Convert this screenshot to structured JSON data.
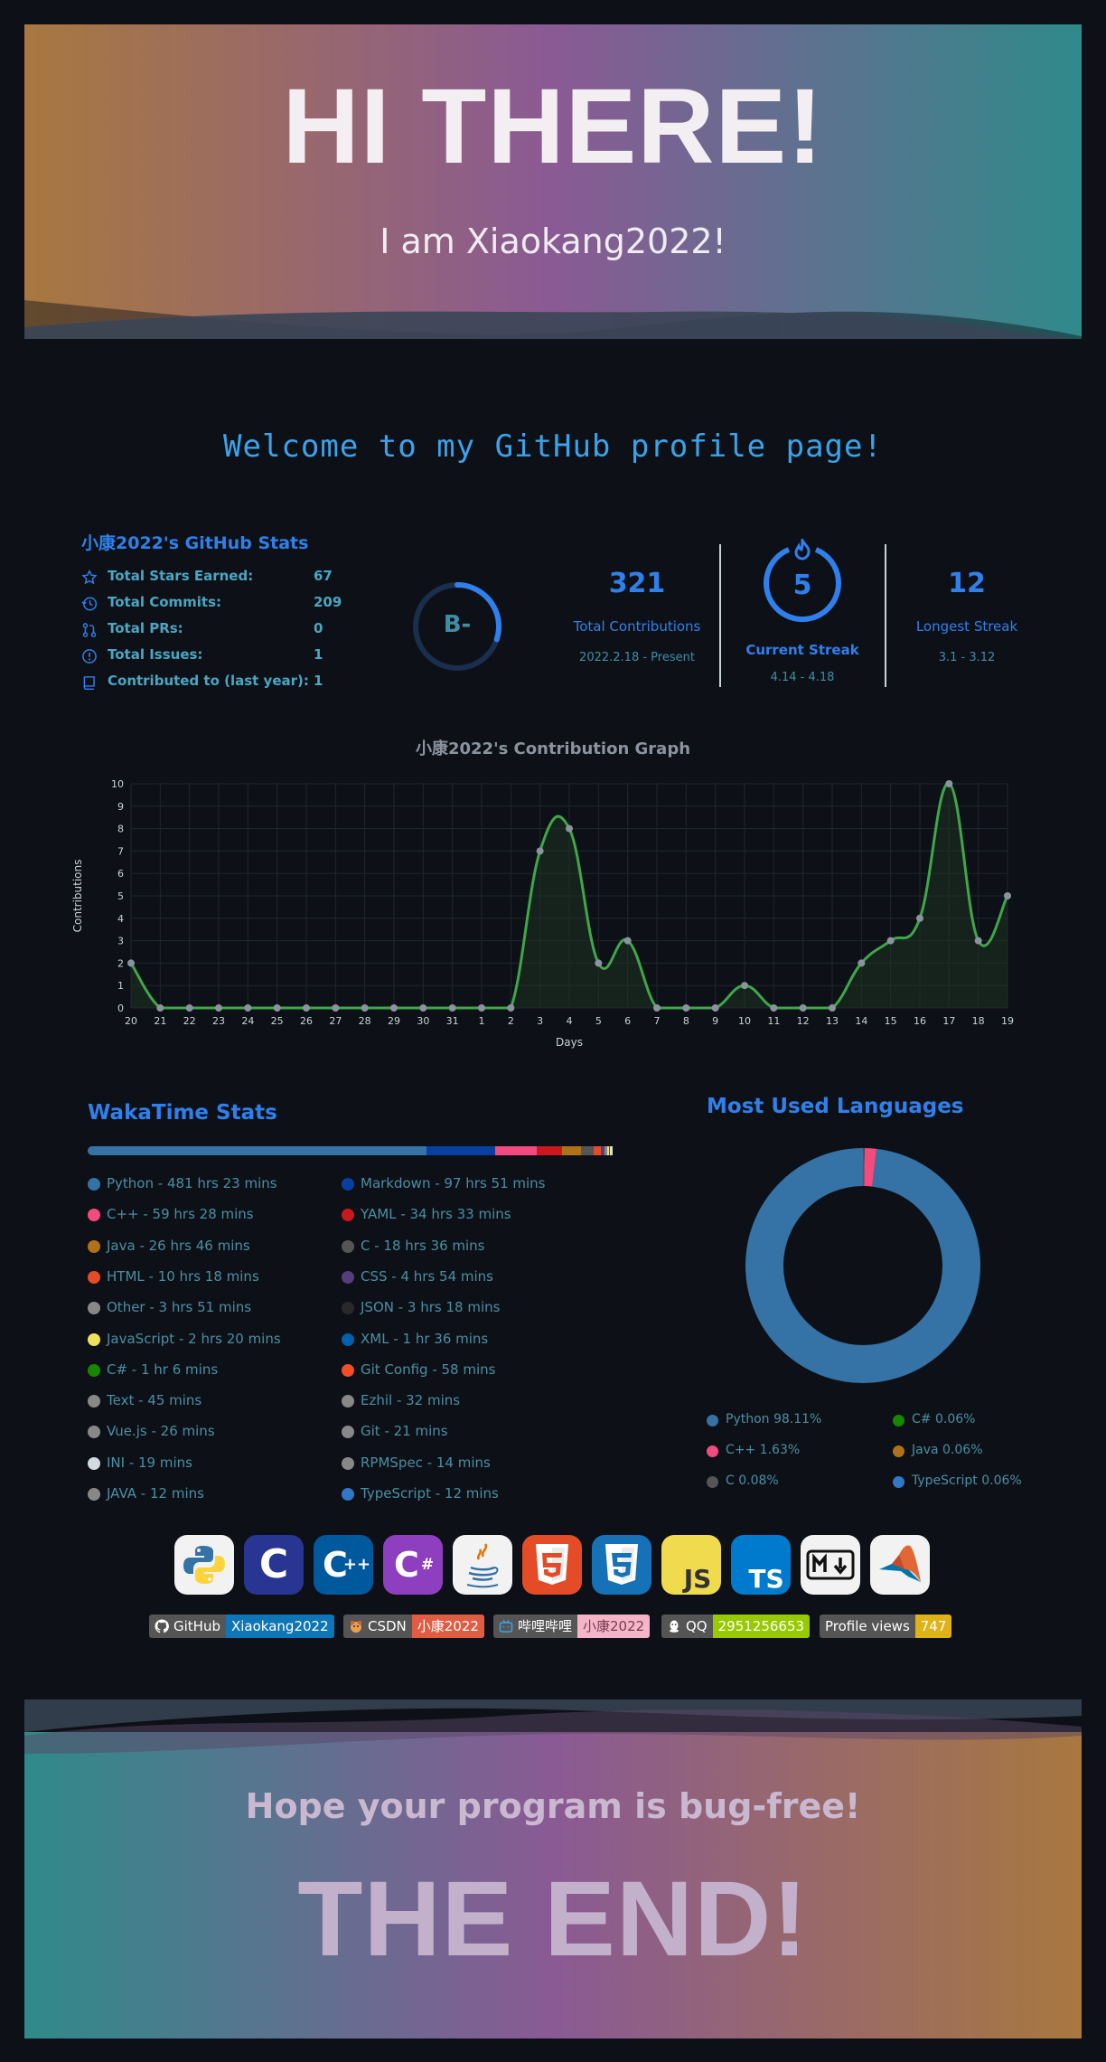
{
  "header": {
    "title": "HI THERE!",
    "subtitle": "I am Xiaokang2022!"
  },
  "welcome": "Welcome to my GitHub profile page!",
  "github_stats": {
    "title": "小康2022's GitHub Stats",
    "rows": [
      {
        "label": "Total Stars Earned:",
        "value": "67",
        "icon": "star-icon"
      },
      {
        "label": "Total Commits:",
        "value": "209",
        "icon": "history-icon"
      },
      {
        "label": "Total PRs:",
        "value": "0",
        "icon": "pull-request-icon"
      },
      {
        "label": "Total Issues:",
        "value": "1",
        "icon": "issue-icon"
      },
      {
        "label": "Contributed to (last year):",
        "value": "1",
        "icon": "repo-icon"
      }
    ],
    "rank": "B-",
    "rank_progress": 0.3
  },
  "streak": {
    "total": {
      "value": "321",
      "label": "Total Contributions",
      "range": "2022.2.18 - Present"
    },
    "current": {
      "value": "5",
      "label": "Current Streak",
      "range": "4.14 - 4.18"
    },
    "longest": {
      "value": "12",
      "label": "Longest Streak",
      "range": "3.1 - 3.12"
    }
  },
  "contribution_graph": {
    "title": "小康2022's Contribution Graph",
    "chart_data": {
      "type": "line",
      "title": "小康2022's Contribution Graph",
      "xlabel": "Days",
      "ylabel": "Contributions",
      "ylim": [
        0,
        10
      ],
      "yticks": [
        "0",
        "1",
        "2",
        "3",
        "4",
        "5",
        "6",
        "7",
        "8",
        "9",
        "10"
      ],
      "categories": [
        "20",
        "21",
        "22",
        "23",
        "24",
        "25",
        "26",
        "27",
        "28",
        "29",
        "30",
        "31",
        "1",
        "2",
        "3",
        "4",
        "5",
        "6",
        "7",
        "8",
        "9",
        "10",
        "11",
        "12",
        "13",
        "14",
        "15",
        "16",
        "17",
        "18",
        "19"
      ],
      "values": [
        2,
        0,
        0,
        0,
        0,
        0,
        0,
        0,
        0,
        0,
        0,
        0,
        0,
        0,
        7,
        8,
        2,
        3,
        0,
        0,
        0,
        1,
        0,
        0,
        0,
        2,
        3,
        4,
        10,
        3,
        5
      ],
      "grid": true,
      "colors": {
        "line": "#3fa64a",
        "point": "#8b949e",
        "grid": "#21262d"
      }
    }
  },
  "wakatime": {
    "title": "WakaTime Stats",
    "bar": [
      {
        "color": "#3572a5",
        "share": 0.622
      },
      {
        "color": "#083fa1",
        "share": 0.126
      },
      {
        "color": "#f34b7d",
        "share": 0.077
      },
      {
        "color": "#cb171e",
        "share": 0.045
      },
      {
        "color": "#b07219",
        "share": 0.035
      },
      {
        "color": "#555555",
        "share": 0.024
      },
      {
        "color": "#e34c26",
        "share": 0.013
      },
      {
        "color": "#563d7c",
        "share": 0.0065
      },
      {
        "color": "#888888",
        "share": 0.005
      },
      {
        "color": "#f1e05a",
        "share": 0.003
      },
      {
        "color": "#178600",
        "share": 0.0015
      },
      {
        "color": "#dddddd",
        "share": 0.005
      }
    ],
    "items": [
      {
        "text": "Python - 481 hrs 23 mins",
        "color": "#3572a5"
      },
      {
        "text": "Markdown - 97 hrs 51 mins",
        "color": "#083fa1"
      },
      {
        "text": "C++ - 59 hrs 28 mins",
        "color": "#f34b7d"
      },
      {
        "text": "YAML - 34 hrs 33 mins",
        "color": "#cb171e"
      },
      {
        "text": "Java - 26 hrs 46 mins",
        "color": "#b07219"
      },
      {
        "text": "C - 18 hrs 36 mins",
        "color": "#555555"
      },
      {
        "text": "HTML - 10 hrs 18 mins",
        "color": "#e34c26"
      },
      {
        "text": "CSS - 4 hrs 54 mins",
        "color": "#563d7c"
      },
      {
        "text": "Other - 3 hrs 51 mins",
        "color": "#888888"
      },
      {
        "text": "JSON - 3 hrs 18 mins",
        "color": "#292929"
      },
      {
        "text": "JavaScript - 2 hrs 20 mins",
        "color": "#f1e05a"
      },
      {
        "text": "XML - 1 hr 36 mins",
        "color": "#0060ac"
      },
      {
        "text": "C# - 1 hr 6 mins",
        "color": "#178600"
      },
      {
        "text": "Git Config - 58 mins",
        "color": "#f44d27"
      },
      {
        "text": "Text - 45 mins",
        "color": "#888888"
      },
      {
        "text": "Ezhil - 32 mins",
        "color": "#888888"
      },
      {
        "text": "Vue.js - 26 mins",
        "color": "#888888"
      },
      {
        "text": "Git - 21 mins",
        "color": "#888888"
      },
      {
        "text": "INI - 19 mins",
        "color": "#d1dbe0"
      },
      {
        "text": "RPMSpec - 14 mins",
        "color": "#888888"
      },
      {
        "text": "JAVA - 12 mins",
        "color": "#888888"
      },
      {
        "text": "TypeScript - 12 mins",
        "color": "#3178c6"
      }
    ]
  },
  "languages": {
    "title": "Most Used Languages",
    "chart_data": {
      "type": "pie",
      "donut": true,
      "slices": [
        {
          "name": "Python",
          "value": 98.11,
          "color": "#3572a5"
        },
        {
          "name": "C++",
          "value": 1.63,
          "color": "#f34b7d"
        },
        {
          "name": "C",
          "value": 0.08,
          "color": "#555555"
        },
        {
          "name": "C#",
          "value": 0.06,
          "color": "#178600"
        },
        {
          "name": "Java",
          "value": 0.06,
          "color": "#b07219"
        },
        {
          "name": "TypeScript",
          "value": 0.06,
          "color": "#3178c6"
        }
      ]
    },
    "legend": [
      {
        "text": "Python 98.11%",
        "color": "#3572a5"
      },
      {
        "text": "C# 0.06%",
        "color": "#178600"
      },
      {
        "text": "C++ 1.63%",
        "color": "#f34b7d"
      },
      {
        "text": "Java 0.06%",
        "color": "#b07219"
      },
      {
        "text": "C 0.08%",
        "color": "#555555"
      },
      {
        "text": "TypeScript 0.06%",
        "color": "#3178c6"
      }
    ]
  },
  "tech_icons": [
    {
      "name": "python-icon"
    },
    {
      "name": "c-icon"
    },
    {
      "name": "cpp-icon"
    },
    {
      "name": "csharp-icon"
    },
    {
      "name": "java-icon"
    },
    {
      "name": "html5-icon"
    },
    {
      "name": "css3-icon"
    },
    {
      "name": "javascript-icon",
      "label": "JS"
    },
    {
      "name": "typescript-icon",
      "label": "TS"
    },
    {
      "name": "markdown-icon"
    },
    {
      "name": "matlab-icon"
    }
  ],
  "badges": [
    {
      "label": "GitHub",
      "value": "Xiaokang2022",
      "color": "#0e75b6",
      "icon": "github-icon"
    },
    {
      "label": "CSDN",
      "value": "小康2022",
      "color": "#e05d44",
      "icon": "csdn-icon"
    },
    {
      "label": "哔哩哔哩",
      "value": "小康2022",
      "color": "#f5b5c8",
      "icon": "bilibili-icon"
    },
    {
      "label": "QQ",
      "value": "2951256653",
      "color": "#97ca00",
      "icon": "qq-icon"
    },
    {
      "label": "Profile views",
      "value": "747",
      "color": "#dfb317",
      "icon": ""
    }
  ],
  "footer": {
    "subtitle": "Hope your program is bug-free!",
    "title": "THE END!"
  }
}
